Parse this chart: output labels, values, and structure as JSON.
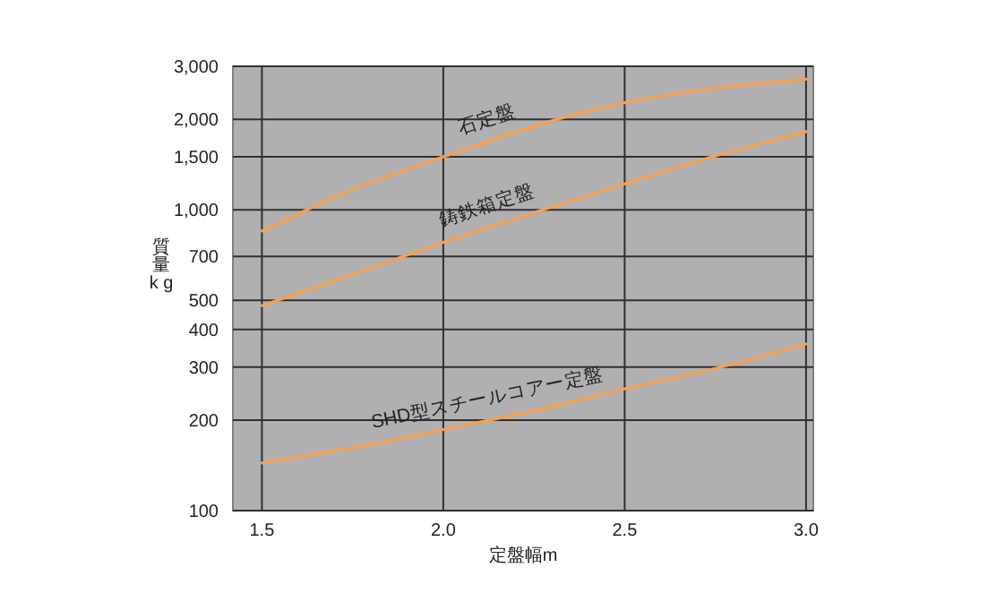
{
  "chart_data": {
    "type": "line",
    "xlabel": "定盤幅m",
    "ylabel": "質量k g",
    "log": "y",
    "grid": true,
    "marker": "none",
    "line_style": "solid",
    "x": [
      1.5,
      1.75,
      2.0,
      2.25,
      2.5,
      2.75,
      3.0
    ],
    "xlim": [
      1.42,
      3.02
    ],
    "ylim": [
      100,
      3000
    ],
    "xticks": [
      {
        "value": 1.5,
        "label": "1.5"
      },
      {
        "value": 2.0,
        "label": "2.0"
      },
      {
        "value": 2.5,
        "label": "2.5"
      },
      {
        "value": 3.0,
        "label": "3.0"
      }
    ],
    "yticks": [
      {
        "value": 100,
        "label": "100"
      },
      {
        "value": 200,
        "label": "200"
      },
      {
        "value": 300,
        "label": "300"
      },
      {
        "value": 400,
        "label": "400"
      },
      {
        "value": 500,
        "label": "500"
      },
      {
        "value": 700,
        "label": "700"
      },
      {
        "value": 1000,
        "label": "1,000"
      },
      {
        "value": 1500,
        "label": "1,500"
      },
      {
        "value": 2000,
        "label": "2,000"
      },
      {
        "value": 3000,
        "label": "3,000"
      }
    ],
    "series": [
      {
        "name": "石定盤",
        "color": "#f8a050",
        "values": [
          850,
          1170,
          1500,
          1900,
          2270,
          2540,
          2720
        ]
      },
      {
        "name": "鋳鉄箱定盤",
        "color": "#f8a050",
        "values": [
          480,
          610,
          780,
          980,
          1220,
          1510,
          1820
        ]
      },
      {
        "name": "SHD型スチールコアー定盤",
        "color": "#f8a050",
        "values": [
          144,
          162,
          186,
          215,
          254,
          297,
          358
        ]
      }
    ]
  }
}
